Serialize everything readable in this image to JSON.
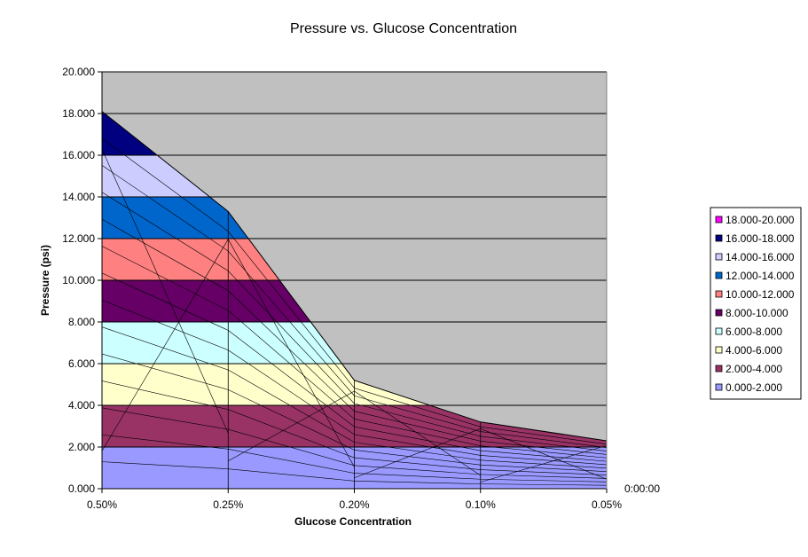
{
  "chart_data": {
    "type": "area",
    "subtype": "3d-surface-contour-bands",
    "title": "Pressure vs. Glucose Concentration",
    "xlabel": "Glucose Concentration",
    "ylabel": "Pressure (psi)",
    "categories": [
      "0.50%",
      "0.25%",
      "0.20%",
      "0.10%",
      "0.05%"
    ],
    "series_axis_label": "0:00:00",
    "ylim": [
      0,
      20
    ],
    "y_ticks": [
      "0.000",
      "2.000",
      "4.000",
      "6.000",
      "8.000",
      "10.000",
      "12.000",
      "14.000",
      "16.000",
      "18.000",
      "20.000"
    ],
    "grid": true,
    "background": "#c0c0c0",
    "legend_position": "right",
    "max_envelope": [
      18.1,
      13.3,
      5.2,
      3.2,
      2.3
    ],
    "bands": [
      {
        "label": "18.000-20.000",
        "min": 18,
        "max": 20,
        "color": "#ff00ff"
      },
      {
        "label": "16.000-18.000",
        "min": 16,
        "max": 18,
        "color": "#000080"
      },
      {
        "label": "14.000-16.000",
        "min": 14,
        "max": 16,
        "color": "#ccccff"
      },
      {
        "label": "12.000-14.000",
        "min": 12,
        "max": 14,
        "color": "#0066cc"
      },
      {
        "label": "10.000-12.000",
        "min": 10,
        "max": 12,
        "color": "#ff8080"
      },
      {
        "label": "8.000-10.000",
        "min": 8,
        "max": 10,
        "color": "#660066"
      },
      {
        "label": "6.000-8.000",
        "min": 6,
        "max": 8,
        "color": "#ccffff"
      },
      {
        "label": "4.000-6.000",
        "min": 4,
        "max": 6,
        "color": "#ffffcc"
      },
      {
        "label": "2.000-4.000",
        "min": 2,
        "max": 4,
        "color": "#993366"
      },
      {
        "label": "0.000-2.000",
        "min": 0,
        "max": 2,
        "color": "#9999ff"
      }
    ]
  }
}
